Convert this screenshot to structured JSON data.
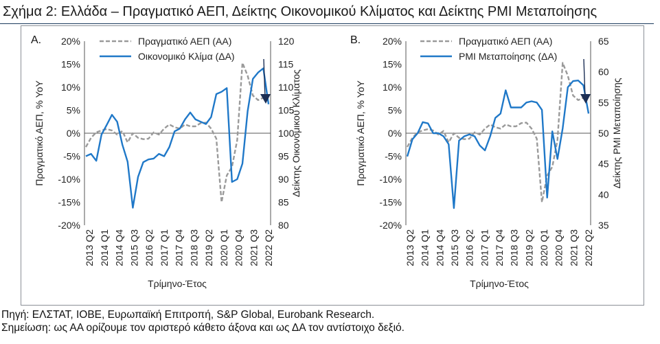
{
  "figure": {
    "title": "Σχήμα 2: Ελλάδα – Πραγματικό ΑΕΠ, Δείκτης Οικονομικού Κλίματος και Δείκτης PMI Μεταποίησης",
    "source": "Πηγή: ΕΛΣΤΑΤ, ΙΟΒΕ, Ευρωπαϊκή Επιτροπή, S&P Global, Eurobank Research.",
    "note": "Σημείωση: ως ΑΑ ορίζουμε τον αριστερό κάθετο άξονα και ως ΔΑ τον αντίστοιχο δεξιό.",
    "colors": {
      "gdp": "#9a9a9a",
      "index": "#1f78c8",
      "arrow": "#1c2f55",
      "rule": "#1a3a5c"
    }
  },
  "chart_data": [
    {
      "type": "line",
      "panel_label": "A.",
      "xlabel": "Τρίμηνο-Έτος",
      "ylabel_left": "Πραγματικό ΑΕΠ, % ΥοΥ",
      "ylabel_right": "Δείκτης Οικονομικού Κλίματος",
      "ylim_left": [
        -20,
        20
      ],
      "ylim_right": [
        80,
        120
      ],
      "yticks_left": [
        "20%",
        "15%",
        "10%",
        "5%",
        "0%",
        "-5%",
        "-10%",
        "-15%",
        "-20%"
      ],
      "yticks_right": [
        "120",
        "115",
        "110",
        "105",
        "100",
        "95",
        "90",
        "85",
        "80"
      ],
      "xtick_labels": [
        "2013 Q2",
        "2014 Q1",
        "2014 Q4",
        "2015 Q3",
        "2016 Q2",
        "2017 Q1",
        "2017 Q4",
        "2018 Q3",
        "2019 Q2",
        "2020 Q1",
        "2020 Q4",
        "2021 Q3",
        "2022 Q2"
      ],
      "legend_position": "top",
      "series": [
        {
          "name": "Πραγματικό ΑΕΠ (ΑΑ)",
          "axis": "left",
          "style": "dashed",
          "values": [
            -3.0,
            -1.0,
            0.2,
            0.6,
            0.9,
            0.6,
            -0.3,
            0.5,
            -2.0,
            0.0,
            -1.0,
            -1.3,
            -1.2,
            0.2,
            -0.3,
            1.0,
            1.9,
            1.3,
            1.0,
            1.9,
            1.5,
            1.5,
            2.2,
            2.3,
            1.0,
            -1.2,
            -15.0,
            -9.2,
            -7.3,
            -1.5,
            15.3,
            12.5,
            8.2,
            7.2,
            7.7
          ]
        },
        {
          "name": "Οικονομικό Κλίμα (ΔΑ)",
          "axis": "right",
          "style": "solid",
          "values": [
            95.0,
            95.5,
            94.0,
            99.7,
            101.8,
            104.0,
            102.5,
            97.5,
            93.8,
            83.8,
            90.5,
            93.7,
            94.3,
            94.5,
            95.5,
            95.0,
            97.0,
            100.4,
            101.0,
            103.0,
            104.5,
            103.0,
            102.5,
            102.0,
            103.5,
            108.5,
            109.0,
            109.8,
            89.4,
            90.0,
            93.4,
            104.8,
            111.8,
            113.2,
            114.1,
            106.3
          ]
        }
      ],
      "annotation": "arrow"
    },
    {
      "type": "line",
      "panel_label": "B.",
      "xlabel": "Τρίμηνο-Έτος",
      "ylabel_left": "Πραγματικό ΑΕΠ, % ΥοΥ",
      "ylabel_right": "Δείκτης PMI Μεταποίησης",
      "ylim_left": [
        -20,
        20
      ],
      "ylim_right": [
        35,
        65
      ],
      "yticks_left": [
        "20%",
        "15%",
        "10%",
        "5%",
        "0%",
        "-5%",
        "-10%",
        "-15%",
        "-20%"
      ],
      "yticks_right": [
        "65",
        "60",
        "55",
        "50",
        "45",
        "40",
        "35"
      ],
      "xtick_labels": [
        "2013 Q2",
        "2014 Q1",
        "2014 Q4",
        "2015 Q3",
        "2016 Q2",
        "2017 Q1",
        "2017 Q4",
        "2018 Q3",
        "2019 Q2",
        "2020 Q1",
        "2020 Q4",
        "2021 Q3",
        "2022 Q2"
      ],
      "legend_position": "top",
      "series": [
        {
          "name": "Πραγματικό ΑΕΠ (ΑΑ)",
          "axis": "left",
          "style": "dashed",
          "values": [
            -3.0,
            -1.0,
            0.2,
            0.6,
            0.9,
            0.6,
            -0.3,
            0.5,
            -2.0,
            0.0,
            -1.0,
            -1.3,
            -1.2,
            0.2,
            -0.3,
            1.0,
            1.9,
            1.3,
            1.0,
            1.9,
            1.5,
            1.5,
            2.2,
            2.3,
            1.0,
            -1.2,
            -15.0,
            -9.2,
            -7.3,
            -1.5,
            15.3,
            12.5,
            8.2,
            7.2,
            7.7
          ]
        },
        {
          "name": "PMI Μεταποίησης (ΔΑ)",
          "axis": "right",
          "style": "solid",
          "values": [
            46.2,
            49.0,
            50.0,
            51.8,
            51.6,
            50.0,
            50.0,
            49.5,
            48.2,
            37.8,
            48.8,
            49.5,
            49.8,
            49.5,
            48.0,
            47.2,
            49.5,
            52.5,
            53.2,
            57.0,
            54.2,
            54.2,
            54.2,
            55.0,
            55.2,
            55.0,
            53.8,
            39.5,
            50.3,
            45.8,
            50.8,
            57.5,
            58.5,
            58.6,
            57.8,
            53.2
          ]
        }
      ],
      "annotation": "arrow"
    }
  ]
}
